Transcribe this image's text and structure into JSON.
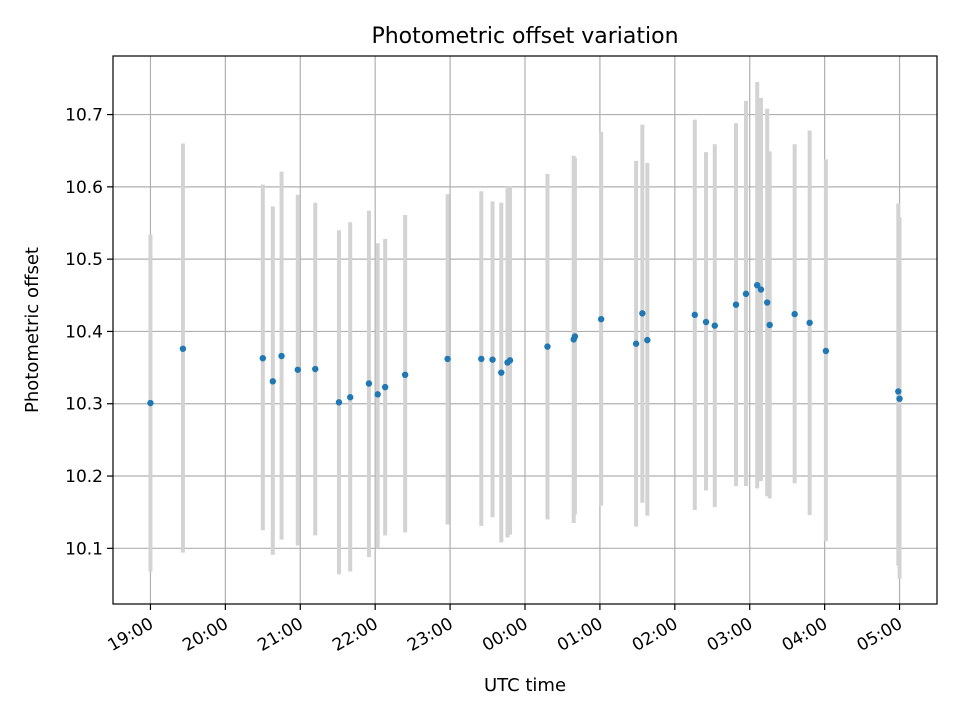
{
  "chart_data": {
    "type": "scatter",
    "title": "Photometric offset variation",
    "xlabel": "UTC time",
    "ylabel": "Photometric offset",
    "grid": true,
    "xlim": [
      "18:30",
      "29:30"
    ],
    "ylim": [
      10.023,
      10.781
    ],
    "x_ticks": [
      "19:00",
      "20:00",
      "21:00",
      "22:00",
      "23:00",
      "00:00",
      "01:00",
      "02:00",
      "03:00",
      "04:00",
      "05:00"
    ],
    "y_ticks": [
      "10.1",
      "10.2",
      "10.3",
      "10.4",
      "10.5",
      "10.6",
      "10.7"
    ],
    "colors": {
      "points": "#1f77b4",
      "errorbars": "#d3d3d3",
      "grid": "#b0b0b0"
    },
    "points": [
      {
        "t": "19:00",
        "y": 10.301,
        "lo": 10.068,
        "hi": 10.534
      },
      {
        "t": "19:26",
        "y": 10.376,
        "lo": 10.094,
        "hi": 10.66
      },
      {
        "t": "20:30",
        "y": 10.363,
        "lo": 10.125,
        "hi": 10.603
      },
      {
        "t": "20:38",
        "y": 10.331,
        "lo": 10.091,
        "hi": 10.573
      },
      {
        "t": "20:45",
        "y": 10.366,
        "lo": 10.112,
        "hi": 10.621
      },
      {
        "t": "20:58",
        "y": 10.347,
        "lo": 10.104,
        "hi": 10.589
      },
      {
        "t": "21:12",
        "y": 10.348,
        "lo": 10.118,
        "hi": 10.578
      },
      {
        "t": "21:31",
        "y": 10.302,
        "lo": 10.064,
        "hi": 10.54
      },
      {
        "t": "21:40",
        "y": 10.309,
        "lo": 10.068,
        "hi": 10.551
      },
      {
        "t": "21:55",
        "y": 10.328,
        "lo": 10.088,
        "hi": 10.567
      },
      {
        "t": "22:02",
        "y": 10.313,
        "lo": 10.1,
        "hi": 10.522
      },
      {
        "t": "22:08",
        "y": 10.323,
        "lo": 10.118,
        "hi": 10.528
      },
      {
        "t": "22:24",
        "y": 10.34,
        "lo": 10.122,
        "hi": 10.561
      },
      {
        "t": "22:58",
        "y": 10.362,
        "lo": 10.133,
        "hi": 10.59
      },
      {
        "t": "23:25",
        "y": 10.362,
        "lo": 10.131,
        "hi": 10.594
      },
      {
        "t": "23:34",
        "y": 10.361,
        "lo": 10.143,
        "hi": 10.58
      },
      {
        "t": "23:41",
        "y": 10.343,
        "lo": 10.108,
        "hi": 10.578
      },
      {
        "t": "23:46",
        "y": 10.357,
        "lo": 10.115,
        "hi": 10.598
      },
      {
        "t": "23:48",
        "y": 10.36,
        "lo": 10.119,
        "hi": 10.601
      },
      {
        "t": "24:18",
        "y": 10.379,
        "lo": 10.14,
        "hi": 10.618
      },
      {
        "t": "24:39",
        "y": 10.389,
        "lo": 10.135,
        "hi": 10.643
      },
      {
        "t": "24:40",
        "y": 10.393,
        "lo": 10.147,
        "hi": 10.64
      },
      {
        "t": "25:01",
        "y": 10.417,
        "lo": 10.159,
        "hi": 10.676
      },
      {
        "t": "25:29",
        "y": 10.383,
        "lo": 10.13,
        "hi": 10.636
      },
      {
        "t": "25:34",
        "y": 10.425,
        "lo": 10.163,
        "hi": 10.686
      },
      {
        "t": "25:38",
        "y": 10.388,
        "lo": 10.145,
        "hi": 10.633
      },
      {
        "t": "26:16",
        "y": 10.423,
        "lo": 10.153,
        "hi": 10.693
      },
      {
        "t": "26:25",
        "y": 10.413,
        "lo": 10.18,
        "hi": 10.648
      },
      {
        "t": "26:32",
        "y": 10.408,
        "lo": 10.157,
        "hi": 10.659
      },
      {
        "t": "26:49",
        "y": 10.437,
        "lo": 10.186,
        "hi": 10.688
      },
      {
        "t": "26:57",
        "y": 10.452,
        "lo": 10.186,
        "hi": 10.719
      },
      {
        "t": "27:06",
        "y": 10.464,
        "lo": 10.183,
        "hi": 10.745
      },
      {
        "t": "27:09",
        "y": 10.458,
        "lo": 10.193,
        "hi": 10.723
      },
      {
        "t": "27:14",
        "y": 10.44,
        "lo": 10.172,
        "hi": 10.708
      },
      {
        "t": "27:16",
        "y": 10.409,
        "lo": 10.169,
        "hi": 10.649
      },
      {
        "t": "27:36",
        "y": 10.424,
        "lo": 10.19,
        "hi": 10.659
      },
      {
        "t": "27:48",
        "y": 10.412,
        "lo": 10.146,
        "hi": 10.678
      },
      {
        "t": "28:01",
        "y": 10.373,
        "lo": 10.11,
        "hi": 10.638
      },
      {
        "t": "28:59",
        "y": 10.317,
        "lo": 10.076,
        "hi": 10.577
      },
      {
        "t": "29:00",
        "y": 10.307,
        "lo": 10.058,
        "hi": 10.558
      }
    ]
  }
}
